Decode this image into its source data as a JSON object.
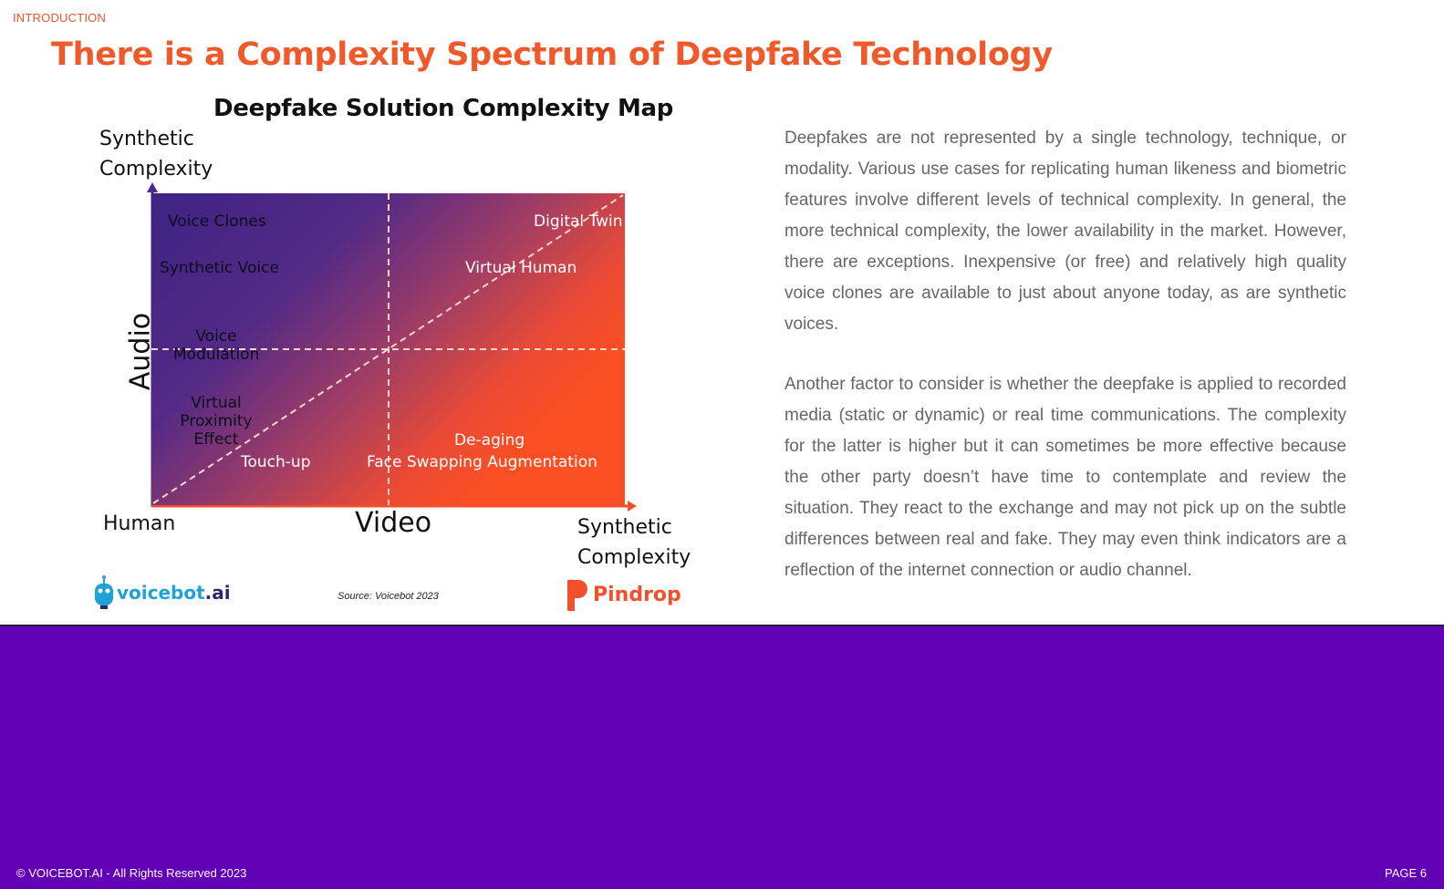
{
  "header": {
    "section": "INTRODUCTION",
    "title": "There is a Complexity Spectrum of Deepfake Technology"
  },
  "map": {
    "title": "Deepfake Solution Complexity Map",
    "y_top_label_line1": "Synthetic",
    "y_top_label_line2": "Complexity",
    "y_axis_name": "Audio",
    "x_axis_name": "Video",
    "origin_label": "Human",
    "x_right_label_line1": "Synthetic",
    "x_right_label_line2": "Complexity",
    "labels": {
      "voice_clones": "Voice Clones",
      "synthetic_voice": "Synthetic Voice",
      "voice_modulation_1": "Voice",
      "voice_modulation_2": "Modulation",
      "virtual_proximity_1": "Virtual",
      "virtual_proximity_2": "Proximity",
      "virtual_proximity_3": "Effect",
      "touch_up": "Touch-up",
      "digital_twin": "Digital Twin",
      "virtual_human": "Virtual Human",
      "de_aging": "De-aging",
      "face_swapping_augmentation": "Face Swapping Augmentation"
    },
    "source": "Source: Voicebot 2023",
    "colors": {
      "purple": "#3d2383",
      "orange": "#fb4f23"
    }
  },
  "logos": {
    "voicebot_main": "voicebot",
    "voicebot_suffix": ".ai",
    "pindrop": "Pindrop"
  },
  "body": {
    "paragraph_1": "Deepfakes are not represented by a single technology, technique, or modality. Various use cases for replicating human likeness and biometric features involve different levels of technical complexity. In general, the more technical complexity, the lower availability in the market. However, there are exceptions. Inexpensive (or free) and relatively high quality voice clones are available to just about anyone today, as are synthetic voices.",
    "paragraph_2": "Another factor to consider is whether the deepfake is applied to recorded media (static or dynamic) or real time communications. The complexity for the latter is higher but it can sometimes be more effective because the other party doesn’t have time to contemplate and review the situation. They react to the exchange and may not pick up on the subtle differences between real and fake. They may even think indicators are a reflection of the internet connection or audio channel."
  },
  "footer": {
    "copyright": "© VOICEBOT.AI - All Rights Reserved 2023",
    "page": "PAGE 6"
  }
}
